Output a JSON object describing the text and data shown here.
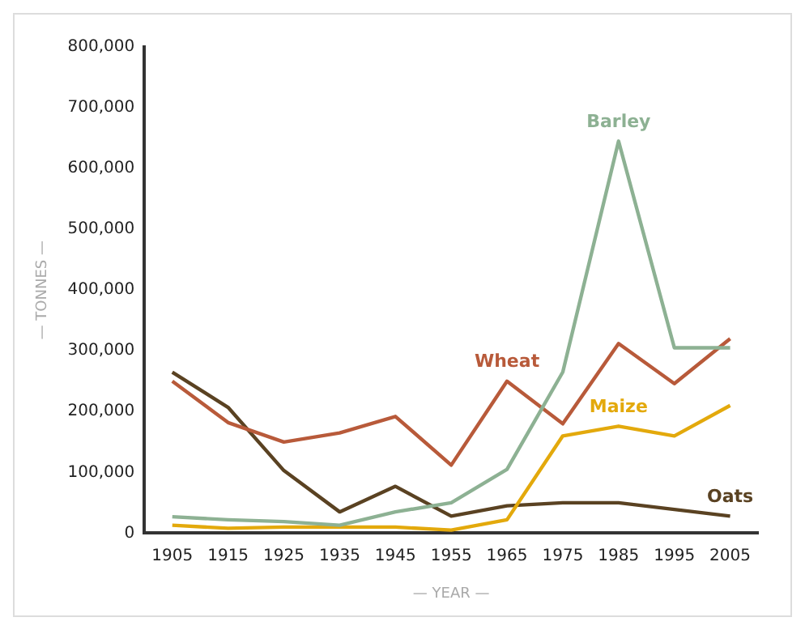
{
  "chart_data": {
    "type": "line",
    "xlabel": "— YEAR —",
    "ylabel": "— TONNES —",
    "categories": [
      "1905",
      "1915",
      "1925",
      "1935",
      "1945",
      "1955",
      "1965",
      "1975",
      "1985",
      "1995",
      "2005"
    ],
    "series": [
      {
        "name": "Barley",
        "color": "#8db193",
        "values": [
          27000,
          22000,
          19000,
          13000,
          35000,
          50000,
          105000,
          265000,
          645000,
          305000,
          305000
        ]
      },
      {
        "name": "Wheat",
        "color": "#b85a3a",
        "values": [
          250000,
          182000,
          150000,
          165000,
          192000,
          112000,
          250000,
          180000,
          312000,
          246000,
          320000
        ]
      },
      {
        "name": "Maize",
        "color": "#e3a90c",
        "values": [
          13000,
          8000,
          10000,
          10000,
          10000,
          5000,
          22000,
          160000,
          176000,
          160000,
          210000
        ]
      },
      {
        "name": "Oats",
        "color": "#5a4222",
        "values": [
          265000,
          207000,
          103000,
          35000,
          77000,
          28000,
          45000,
          50000,
          50000,
          39000,
          28000
        ]
      }
    ],
    "ylim": [
      0,
      800000
    ],
    "yticks": [
      0,
      {
        "value": 100000,
        "label": "100,000"
      },
      {
        "value": 200000,
        "label": "200,000"
      },
      {
        "value": 300000,
        "label": "300,000"
      },
      {
        "value": 400000,
        "label": "400,000"
      },
      {
        "value": 500000,
        "label": "500,000"
      },
      {
        "value": 600000,
        "label": "600,000"
      },
      {
        "value": 700000,
        "label": "700,000"
      },
      {
        "value": 800000,
        "label": "800,000"
      }
    ],
    "grid": false,
    "legend": false,
    "marker": "none",
    "line_style": "solid"
  }
}
